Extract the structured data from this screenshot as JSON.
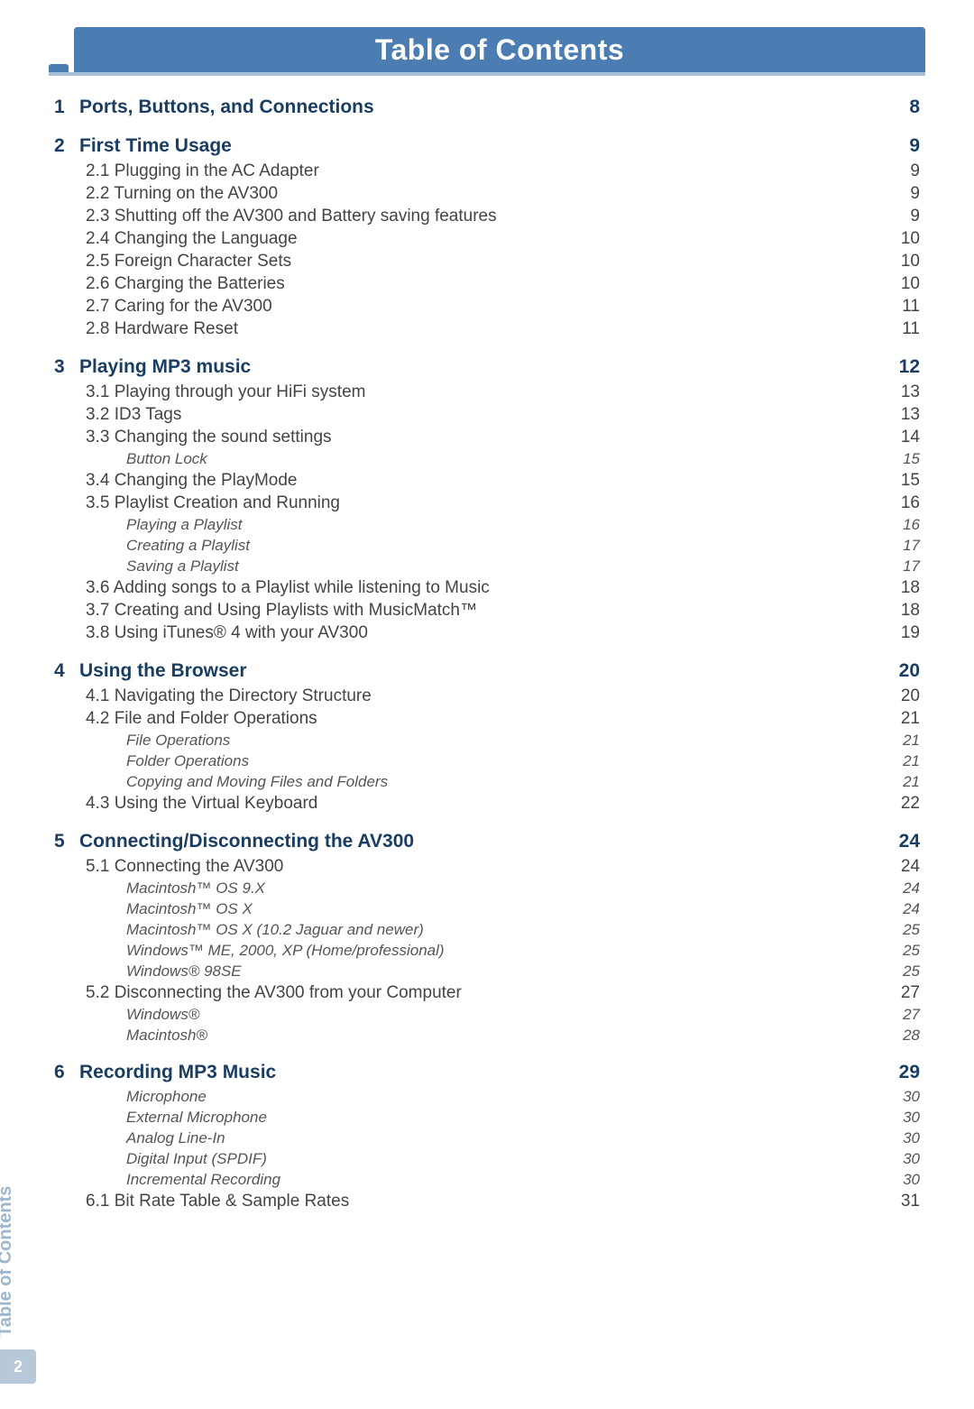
{
  "header": {
    "title": "Table of Contents"
  },
  "side_label": "Table of Contents",
  "page_number": "2",
  "chapters": [
    {
      "num": "1",
      "title": "Ports, Buttons, and Connections",
      "page": "8",
      "subs": []
    },
    {
      "num": "2",
      "title": "First Time Usage",
      "page": "9",
      "subs": [
        {
          "title": "2.1 Plugging in the AC Adapter",
          "page": "9",
          "subsubs": []
        },
        {
          "title": "2.2 Turning on the AV300",
          "page": "9",
          "subsubs": []
        },
        {
          "title": "2.3 Shutting off the AV300 and Battery saving features",
          "page": "9",
          "subsubs": []
        },
        {
          "title": "2.4 Changing the Language",
          "page": "10",
          "subsubs": []
        },
        {
          "title": "2.5 Foreign Character Sets",
          "page": "10",
          "subsubs": []
        },
        {
          "title": "2.6 Charging the Batteries",
          "page": "10",
          "subsubs": []
        },
        {
          "title": "2.7 Caring for the AV300",
          "page": "11",
          "subsubs": []
        },
        {
          "title": "2.8 Hardware Reset",
          "page": "11",
          "subsubs": []
        }
      ]
    },
    {
      "num": "3",
      "title": "Playing MP3 music",
      "page": "12",
      "subs": [
        {
          "title": "3.1 Playing through your HiFi system",
          "page": "13",
          "subsubs": []
        },
        {
          "title": "3.2 ID3 Tags",
          "page": "13",
          "subsubs": []
        },
        {
          "title": "3.3 Changing the sound settings",
          "page": "14",
          "subsubs": [
            {
              "title": "Button Lock",
              "page": "15"
            }
          ]
        },
        {
          "title": "3.4 Changing the PlayMode",
          "page": "15",
          "subsubs": []
        },
        {
          "title": "3.5 Playlist Creation and Running",
          "page": "16",
          "subsubs": [
            {
              "title": "Playing a Playlist",
              "page": "16"
            },
            {
              "title": "Creating a Playlist",
              "page": "17"
            },
            {
              "title": "Saving a Playlist",
              "page": "17"
            }
          ]
        },
        {
          "title": "3.6 Adding songs to a Playlist while listening to Music",
          "page": "18",
          "subsubs": []
        },
        {
          "title": "3.7 Creating and Using Playlists with MusicMatch™",
          "page": "18",
          "subsubs": []
        },
        {
          "title": "3.8 Using iTunes® 4 with your AV300",
          "page": "19",
          "subsubs": []
        }
      ]
    },
    {
      "num": "4",
      "title": "Using the Browser",
      "page": "20",
      "subs": [
        {
          "title": "4.1 Navigating the Directory Structure",
          "page": "20",
          "subsubs": []
        },
        {
          "title": "4.2 File and Folder Operations",
          "page": "21",
          "subsubs": [
            {
              "title": "File Operations",
              "page": "21"
            },
            {
              "title": "Folder Operations",
              "page": "21"
            },
            {
              "title": "Copying and Moving Files and Folders",
              "page": "21"
            }
          ]
        },
        {
          "title": "4.3 Using the Virtual Keyboard",
          "page": "22",
          "subsubs": []
        }
      ]
    },
    {
      "num": "5",
      "title": "Connecting/Disconnecting the AV300",
      "page": "24",
      "subs": [
        {
          "title": "5.1 Connecting the AV300",
          "page": "24",
          "subsubs": [
            {
              "title": "Macintosh™ OS 9.X",
              "page": "24"
            },
            {
              "title": "Macintosh™ OS X",
              "page": "24"
            },
            {
              "title": "Macintosh™ OS X (10.2 Jaguar and newer)",
              "page": "25"
            },
            {
              "title": "Windows™ ME, 2000, XP (Home/professional)",
              "page": "25"
            },
            {
              "title": "Windows® 98SE",
              "page": "25"
            }
          ]
        },
        {
          "title": "5.2 Disconnecting the AV300 from your Computer",
          "page": "27",
          "subsubs": [
            {
              "title": "Windows®",
              "page": "27"
            },
            {
              "title": "Macintosh®",
              "page": "28"
            }
          ]
        }
      ]
    },
    {
      "num": "6",
      "title": "Recording MP3 Music",
      "page": "29",
      "pre_subsubs": [
        {
          "title": "Microphone",
          "page": "30"
        },
        {
          "title": "External Microphone",
          "page": "30"
        },
        {
          "title": "Analog Line-In",
          "page": "30"
        },
        {
          "title": "Digital Input (SPDIF)",
          "page": "30"
        },
        {
          "title": "Incremental Recording",
          "page": "30"
        }
      ],
      "subs": [
        {
          "title": "6.1 Bit Rate Table & Sample Rates",
          "page": "31",
          "subsubs": []
        }
      ]
    }
  ],
  "colors": {
    "header_bg": "#4b7db2",
    "header_text": "#ffffff",
    "underline": "#a7c0d8",
    "chapter_text": "#1a3e63",
    "side_label": "#9eb6cc",
    "badge_bg": "#b7c9d9"
  }
}
